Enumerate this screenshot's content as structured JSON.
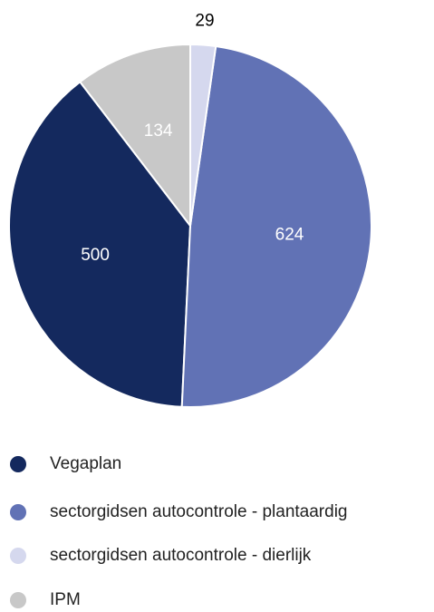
{
  "chart_data": {
    "type": "pie",
    "categories": [
      "Vegaplan",
      "sectorgidsen autocontrole - plantaardig",
      "sectorgidsen autocontrole - dierlijk",
      "IPM"
    ],
    "values": [
      500,
      624,
      29,
      134
    ],
    "colors": [
      "#14295e",
      "#6172b5",
      "#d5d8ee",
      "#c8c8c8"
    ]
  }
}
